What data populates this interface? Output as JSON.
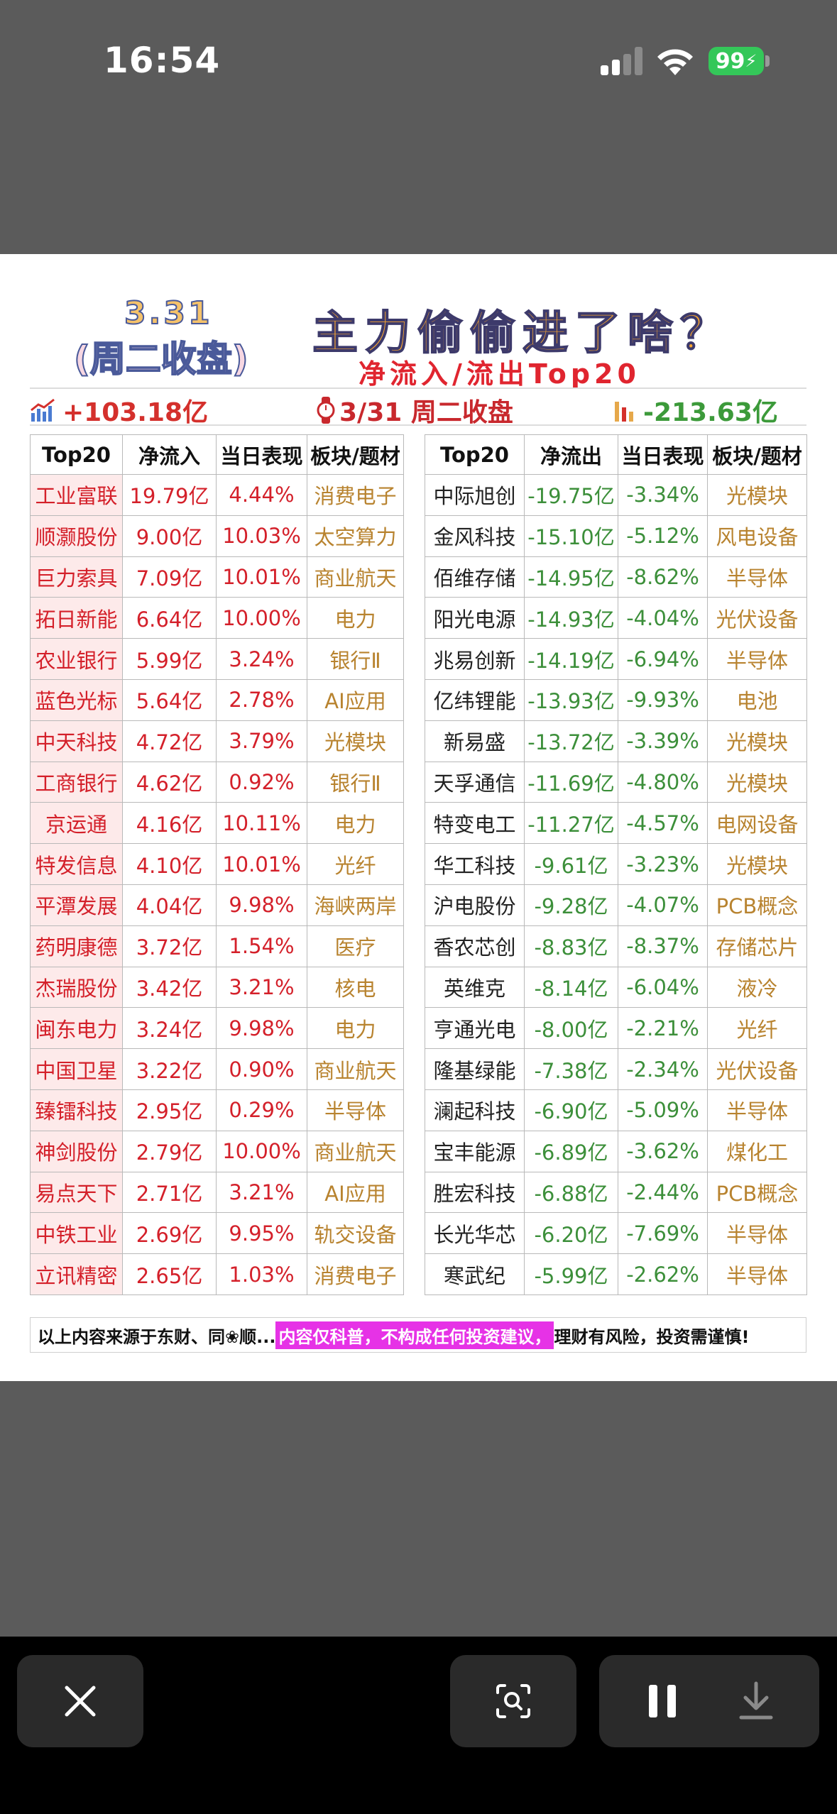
{
  "status": {
    "time": "16:54",
    "battery": "99"
  },
  "header": {
    "date": "3.31",
    "day": "(周二收盘)",
    "title": "主力偷偷进了啥？",
    "subtitle": "净流入/流出Top20"
  },
  "summary": {
    "inflow_total": "+103.18亿",
    "close_label": "3/31 周二收盘",
    "outflow_total": "-213.63亿"
  },
  "inflow": {
    "headers": [
      "Top20",
      "净流入",
      "当日表现",
      "板块/题材"
    ],
    "rows": [
      [
        "工业富联",
        "19.79亿",
        "4.44%",
        "消费电子"
      ],
      [
        "顺灏股份",
        "9.00亿",
        "10.03%",
        "太空算力"
      ],
      [
        "巨力索具",
        "7.09亿",
        "10.01%",
        "商业航天"
      ],
      [
        "拓日新能",
        "6.64亿",
        "10.00%",
        "电力"
      ],
      [
        "农业银行",
        "5.99亿",
        "3.24%",
        "银行Ⅱ"
      ],
      [
        "蓝色光标",
        "5.64亿",
        "2.78%",
        "AI应用"
      ],
      [
        "中天科技",
        "4.72亿",
        "3.79%",
        "光模块"
      ],
      [
        "工商银行",
        "4.62亿",
        "0.92%",
        "银行Ⅱ"
      ],
      [
        "京运通",
        "4.16亿",
        "10.11%",
        "电力"
      ],
      [
        "特发信息",
        "4.10亿",
        "10.01%",
        "光纤"
      ],
      [
        "平潭发展",
        "4.04亿",
        "9.98%",
        "海峡两岸"
      ],
      [
        "药明康德",
        "3.72亿",
        "1.54%",
        "医疗"
      ],
      [
        "杰瑞股份",
        "3.42亿",
        "3.21%",
        "核电"
      ],
      [
        "闽东电力",
        "3.24亿",
        "9.98%",
        "电力"
      ],
      [
        "中国卫星",
        "3.22亿",
        "0.90%",
        "商业航天"
      ],
      [
        "臻镭科技",
        "2.95亿",
        "0.29%",
        "半导体"
      ],
      [
        "神剑股份",
        "2.79亿",
        "10.00%",
        "商业航天"
      ],
      [
        "易点天下",
        "2.71亿",
        "3.21%",
        "AI应用"
      ],
      [
        "中铁工业",
        "2.69亿",
        "9.95%",
        "轨交设备"
      ],
      [
        "立讯精密",
        "2.65亿",
        "1.03%",
        "消费电子"
      ]
    ]
  },
  "outflow": {
    "headers": [
      "Top20",
      "净流出",
      "当日表现",
      "板块/题材"
    ],
    "rows": [
      [
        "中际旭创",
        "-19.75亿",
        "-3.34%",
        "光模块"
      ],
      [
        "金风科技",
        "-15.10亿",
        "-5.12%",
        "风电设备"
      ],
      [
        "佰维存储",
        "-14.95亿",
        "-8.62%",
        "半导体"
      ],
      [
        "阳光电源",
        "-14.93亿",
        "-4.04%",
        "光伏设备"
      ],
      [
        "兆易创新",
        "-14.19亿",
        "-6.94%",
        "半导体"
      ],
      [
        "亿纬锂能",
        "-13.93亿",
        "-9.93%",
        "电池"
      ],
      [
        "新易盛",
        "-13.72亿",
        "-3.39%",
        "光模块"
      ],
      [
        "天孚通信",
        "-11.69亿",
        "-4.80%",
        "光模块"
      ],
      [
        "特变电工",
        "-11.27亿",
        "-4.57%",
        "电网设备"
      ],
      [
        "华工科技",
        "-9.61亿",
        "-3.23%",
        "光模块"
      ],
      [
        "沪电股份",
        "-9.28亿",
        "-4.07%",
        "PCB概念"
      ],
      [
        "香农芯创",
        "-8.83亿",
        "-8.37%",
        "存储芯片"
      ],
      [
        "英维克",
        "-8.14亿",
        "-6.04%",
        "液冷"
      ],
      [
        "亨通光电",
        "-8.00亿",
        "-2.21%",
        "光纤"
      ],
      [
        "隆基绿能",
        "-7.38亿",
        "-2.34%",
        "光伏设备"
      ],
      [
        "澜起科技",
        "-6.90亿",
        "-5.09%",
        "半导体"
      ],
      [
        "宝丰能源",
        "-6.89亿",
        "-3.62%",
        "煤化工"
      ],
      [
        "胜宏科技",
        "-6.88亿",
        "-2.44%",
        "PCB概念"
      ],
      [
        "长光华芯",
        "-6.20亿",
        "-7.69%",
        "半导体"
      ],
      [
        "寒武纪",
        "-5.99亿",
        "-2.62%",
        "半导体"
      ]
    ]
  },
  "footer": {
    "prefix": "以上内容来源于东财、同❀顺...",
    "highlight": "内容仅科普，不构成任何投资建议，",
    "suffix": "理财有风险，投资需谨慎!"
  },
  "colors": {
    "inflow": "#d4202a",
    "outflow": "#3c8f3a",
    "theme": "#b8832f",
    "highlight": "#e632e6"
  },
  "icons": [
    "signal-icon",
    "wifi-icon",
    "battery-icon",
    "chart-up-icon",
    "watch-icon",
    "chart-down-icon",
    "close-icon",
    "lens-icon",
    "pause-icon",
    "download-icon"
  ]
}
